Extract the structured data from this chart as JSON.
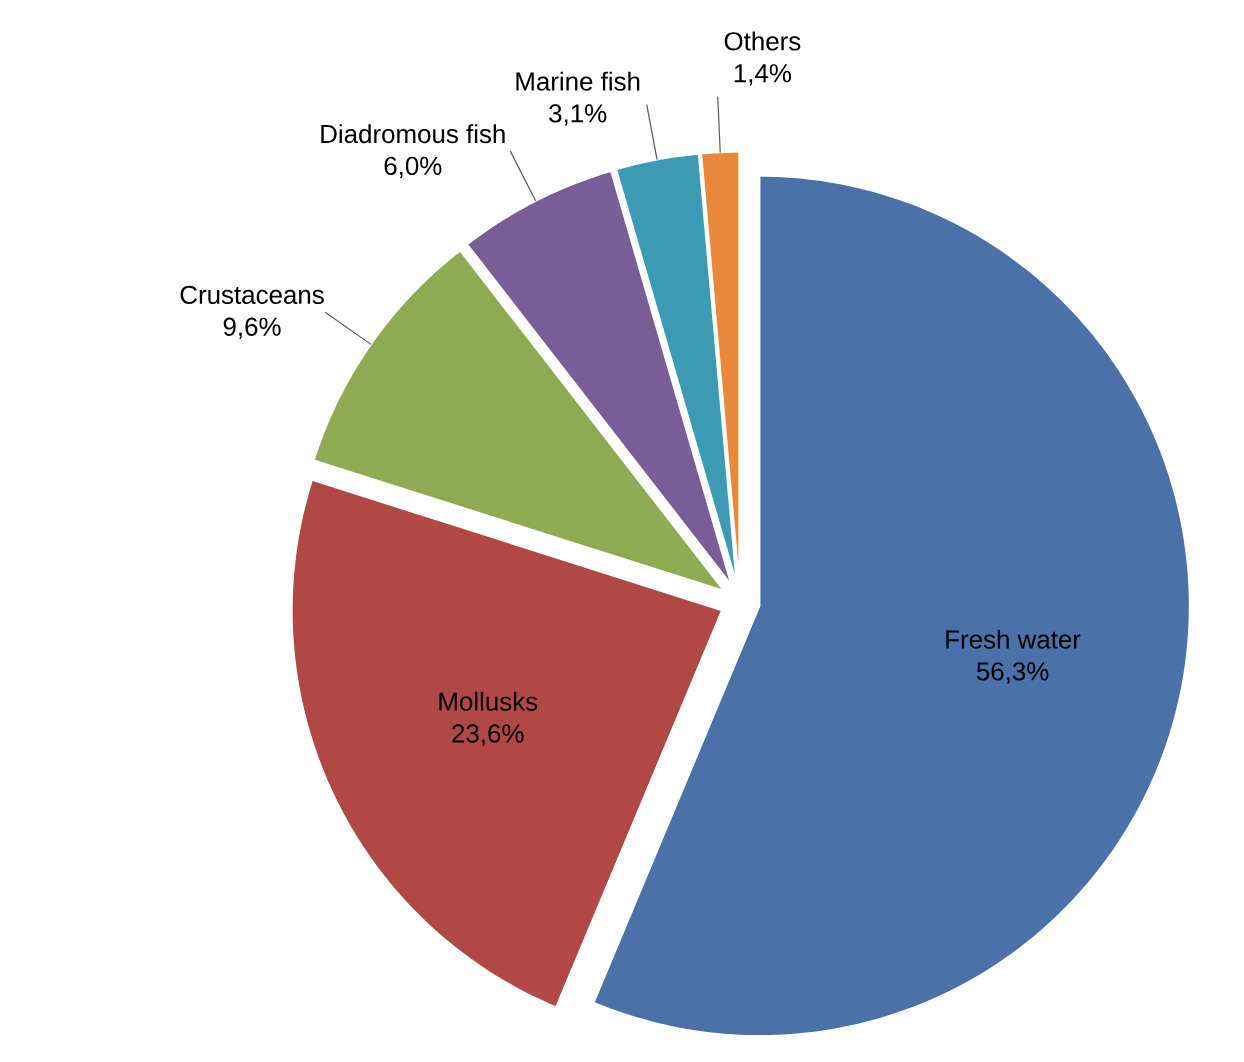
{
  "chart_data": {
    "type": "pie",
    "categories": [
      "Fresh water",
      "Mollusks",
      "Crustaceans",
      "Diadromous fish",
      "Marine fish",
      "Others"
    ],
    "values": [
      56.3,
      23.6,
      9.6,
      6.0,
      3.1,
      1.4
    ],
    "value_labels": [
      "56,3%",
      "23,6%",
      "9,6%",
      "6,0%",
      "3,1%",
      "1,4%"
    ],
    "colors": [
      "#4a71a8",
      "#b04845",
      "#8eab52",
      "#7a5c96",
      "#3c9bb3",
      "#e8883a"
    ]
  }
}
